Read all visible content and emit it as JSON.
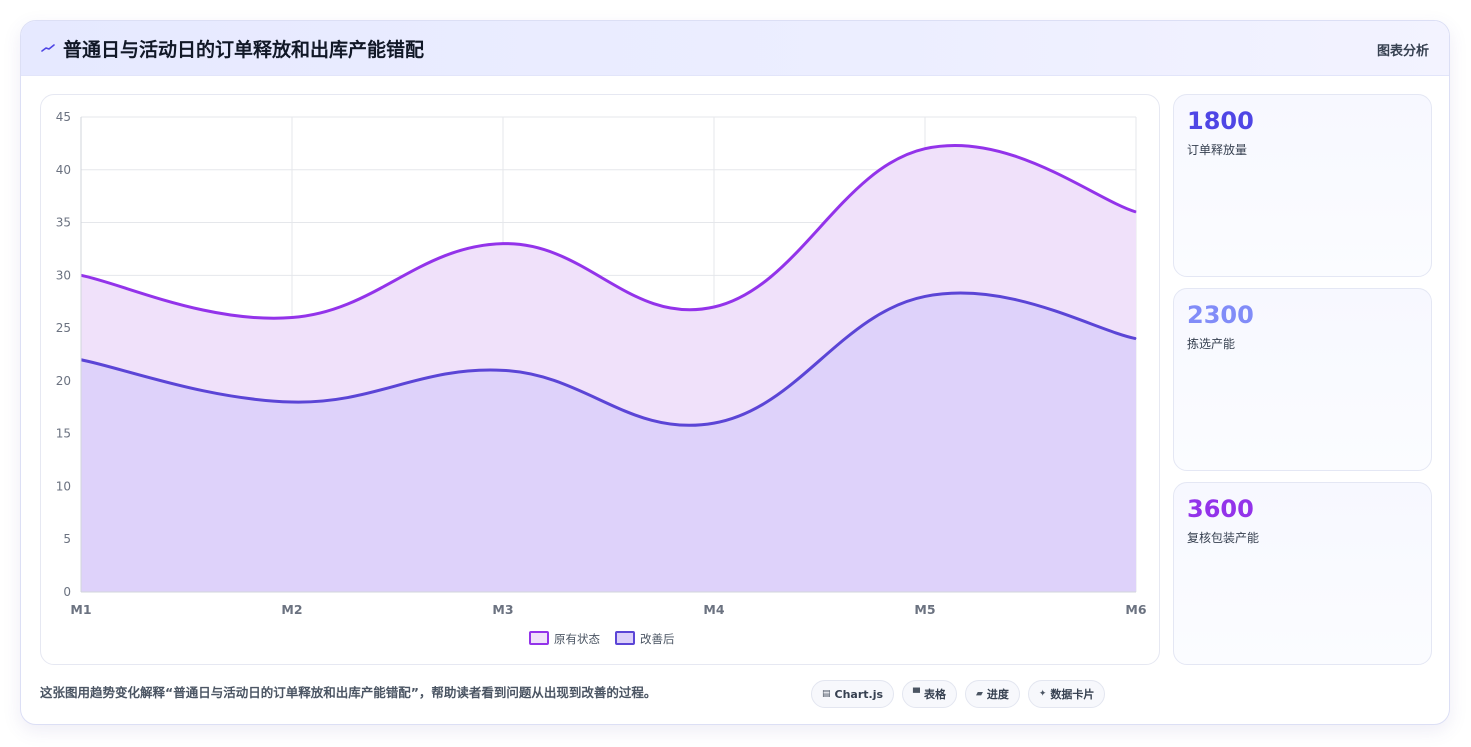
{
  "header": {
    "title": "普通日与活动日的订单释放和出库产能错配",
    "icon": "trend-line-icon",
    "tag": "图表分析"
  },
  "stats": [
    {
      "value": "1800",
      "label": "订单释放量",
      "color": "#4f46e5"
    },
    {
      "value": "2300",
      "label": "拣选产能",
      "color": "#818cf8"
    },
    {
      "value": "3600",
      "label": "复核包装产能",
      "color": "#9333ea"
    }
  ],
  "footer": {
    "description": "这张图用趋势变化解释“普通日与活动日的订单释放和出库产能错配”，帮助读者看到问题从出现到改善的过程。"
  },
  "chips": [
    {
      "icon": "chart-icon",
      "glyph": "▤",
      "label": "Chart.js"
    },
    {
      "icon": "table-icon",
      "glyph": "▀",
      "label": "表格"
    },
    {
      "icon": "progress-icon",
      "glyph": "▰",
      "label": "进度"
    },
    {
      "icon": "card-icon",
      "glyph": "✦",
      "label": "数据卡片"
    }
  ],
  "chart_data": {
    "type": "area",
    "categories": [
      "M1",
      "M2",
      "M3",
      "M4",
      "M5",
      "M6"
    ],
    "series": [
      {
        "name": "原有状态",
        "values": [
          30,
          26,
          33,
          27,
          42,
          36
        ],
        "color": "#9333ea",
        "fill": "#f0e1fa"
      },
      {
        "name": "改善后",
        "values": [
          22,
          18,
          21,
          16,
          28,
          24
        ],
        "color": "#5b45d6",
        "fill": "#dcd0fa"
      }
    ],
    "ylim": [
      0,
      45
    ],
    "yticks": [
      0,
      5,
      10,
      15,
      20,
      25,
      30,
      35,
      40,
      45
    ],
    "grid": true,
    "legend": "bottom"
  }
}
